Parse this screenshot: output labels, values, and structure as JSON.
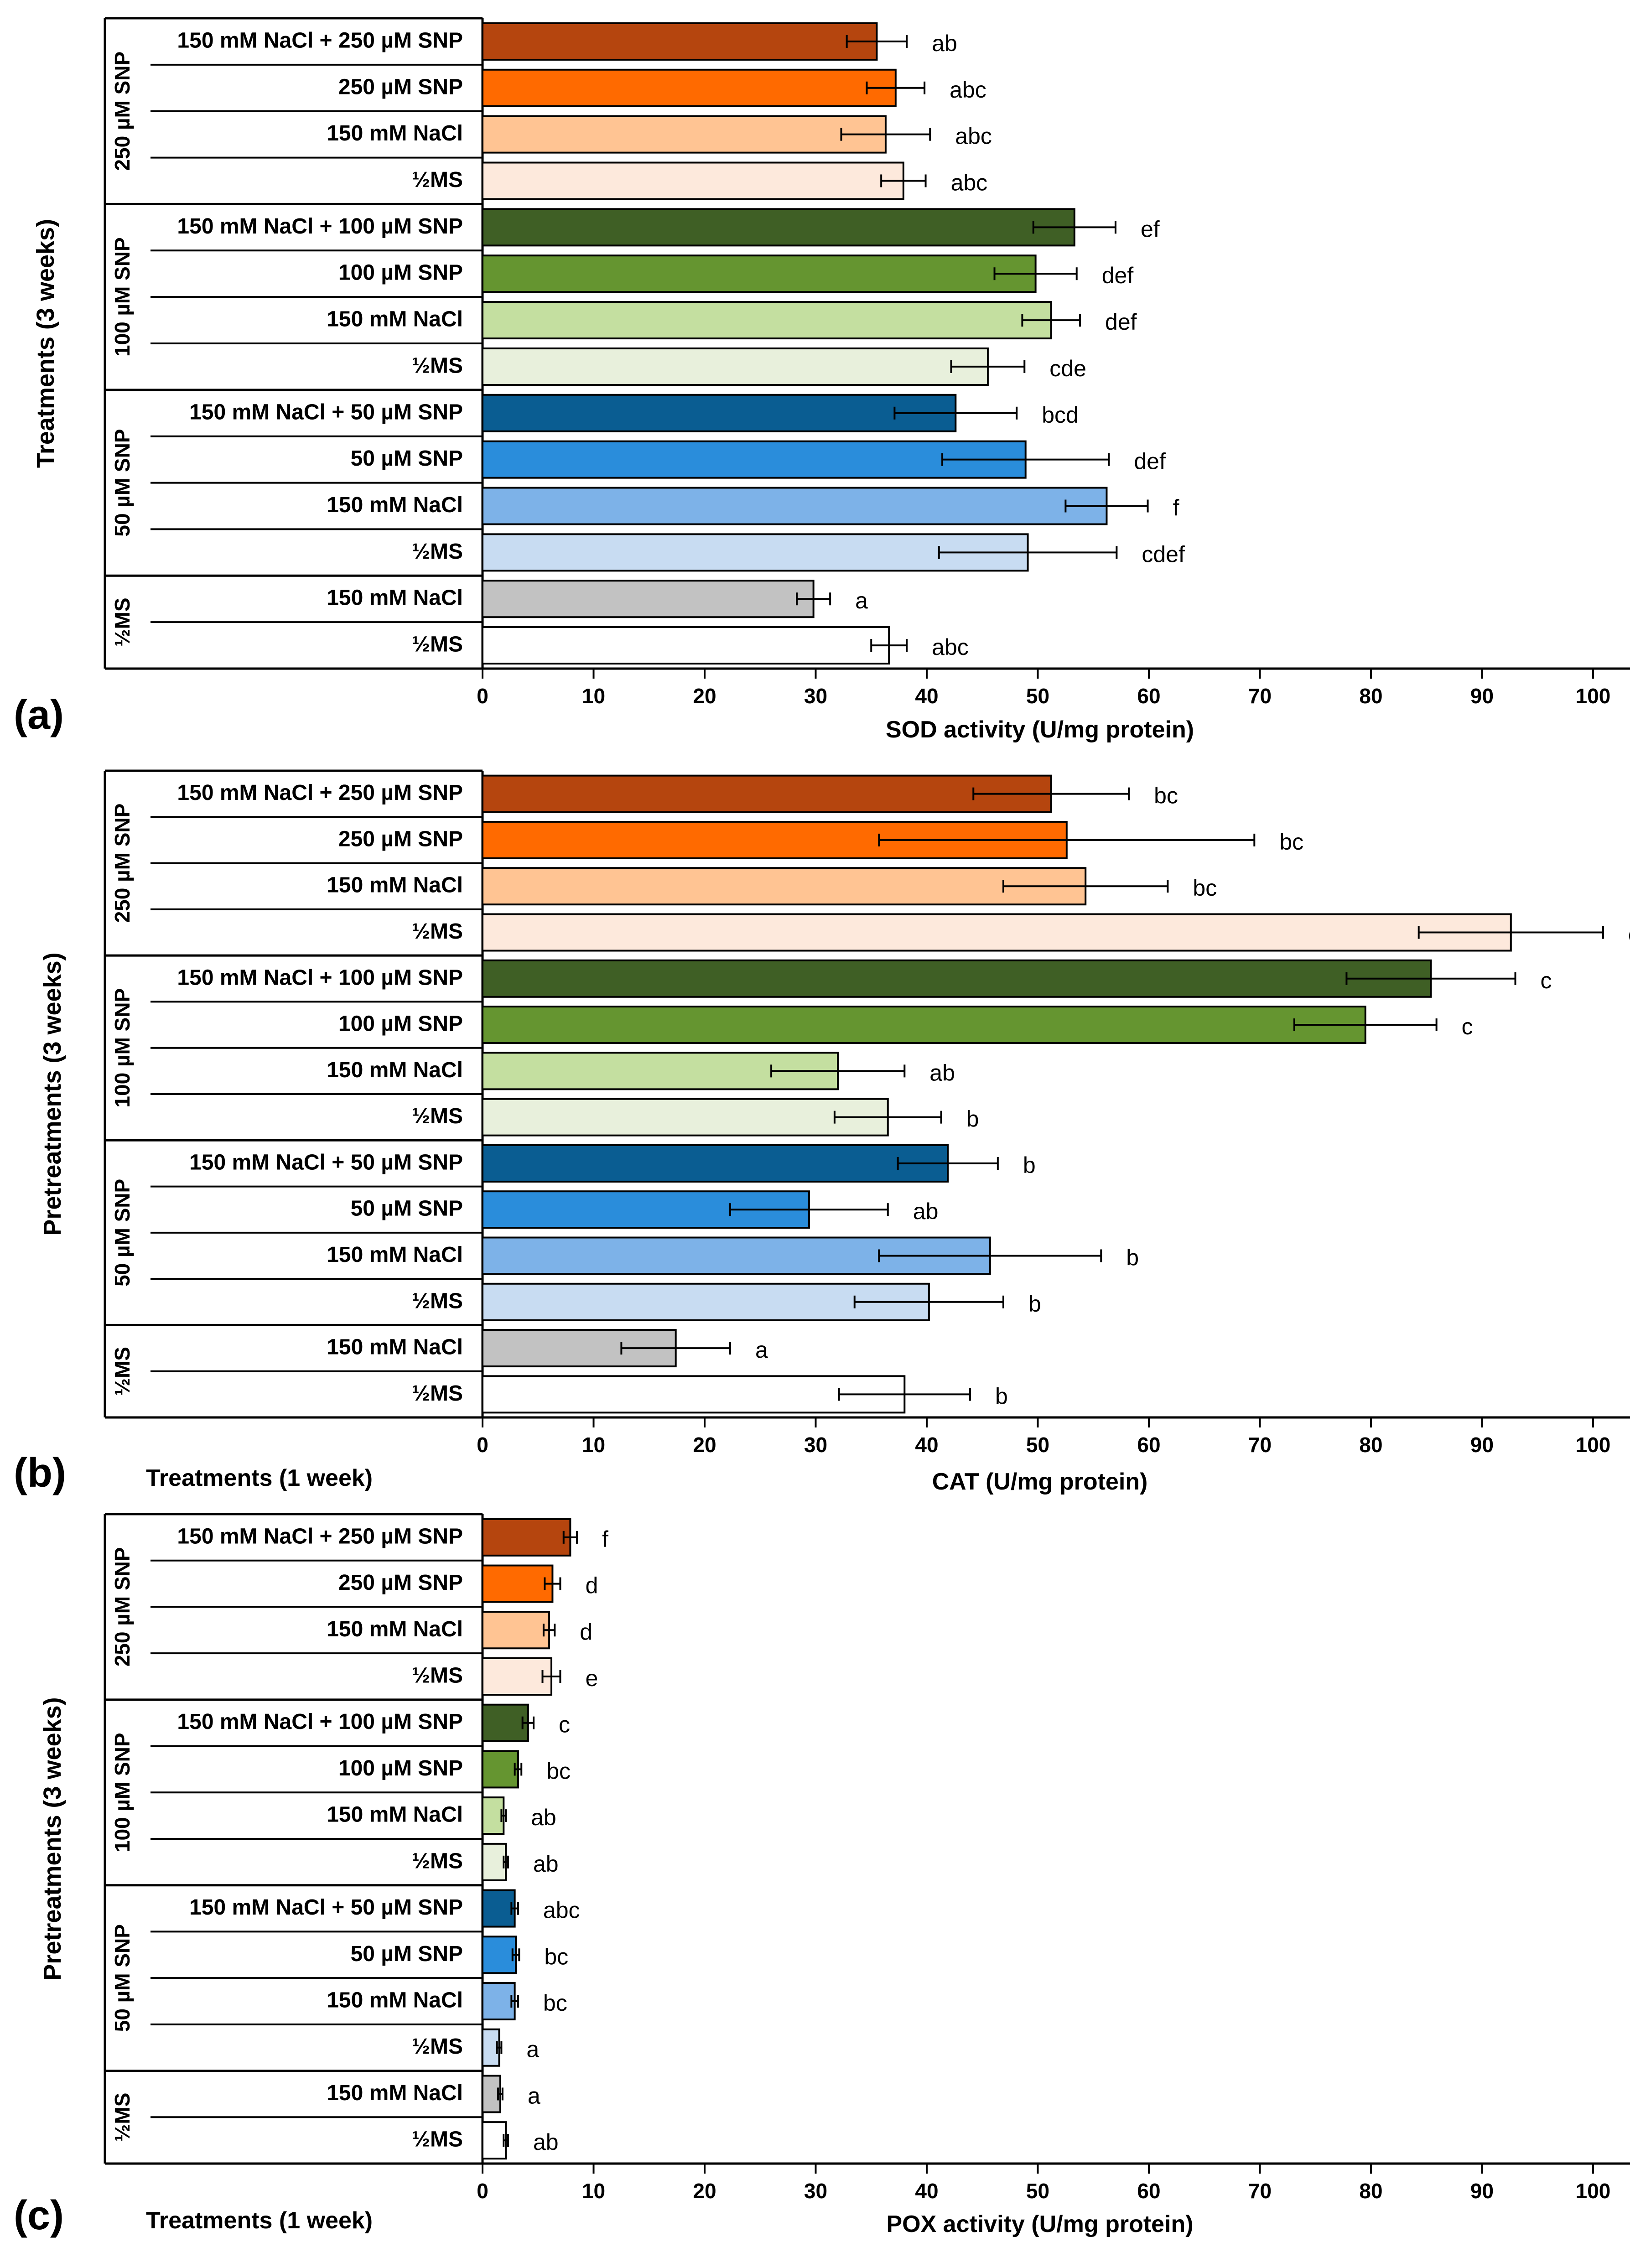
{
  "figure": {
    "group_labels": [
      "250 µM SNP",
      "100 µM SNP",
      "50 µM SNP",
      "½MS"
    ],
    "category_labels": [
      "150 mM NaCl + 250 µM SNP",
      "250 µM SNP",
      "150 mM NaCl",
      "½MS",
      "150 mM NaCl + 100 µM SNP",
      "100 µM SNP",
      "150 mM NaCl",
      "½MS",
      "150 mM NaCl + 50 µM SNP",
      "50 µM SNP",
      "150 mM NaCl",
      "½MS",
      "150 mM NaCl",
      "½MS"
    ],
    "colors": [
      "#b5450e",
      "#ff6a00",
      "#ffc493",
      "#fde9dc",
      "#3f5f25",
      "#659530",
      "#c4dfa0",
      "#e8f0dc",
      "#0a5d92",
      "#2a8ddb",
      "#7db2e8",
      "#c8dcf2",
      "#c2c2c2",
      "#ffffff"
    ]
  },
  "chart_data": [
    {
      "type": "bar",
      "panel_label": "(a)",
      "title": "",
      "xlabel": "SOD activity (U/mg protein)",
      "ylabel": "Treatments (3 weeks)",
      "bottom_label": "",
      "xlim": [
        0,
        120
      ],
      "xticks": [
        "0",
        "10",
        "20",
        "30",
        "40",
        "50",
        "60",
        "70",
        "80",
        "90",
        "100",
        "110",
        "120"
      ],
      "values": [
        35.5,
        37.2,
        36.3,
        37.9,
        53.3,
        49.8,
        51.2,
        45.5,
        42.6,
        48.9,
        56.2,
        49.1,
        29.8,
        36.6
      ],
      "errors": [
        2.7,
        2.6,
        4.0,
        2.0,
        3.7,
        3.7,
        2.6,
        3.3,
        5.5,
        7.5,
        3.7,
        8.0,
        1.5,
        1.6
      ],
      "letters": [
        "ab",
        "abc",
        "abc",
        "abc",
        "ef",
        "def",
        "def",
        "cde",
        "bcd",
        "def",
        "f",
        "cdef",
        "a",
        "abc"
      ]
    },
    {
      "type": "bar",
      "panel_label": "(b)",
      "title": "",
      "xlabel": "CAT (U/mg protein)",
      "ylabel": "Pretreatments (3 weeks)",
      "bottom_label": "Treatments (1 week)",
      "xlim": [
        0,
        120
      ],
      "xticks": [
        "0",
        "10",
        "20",
        "30",
        "40",
        "50",
        "60",
        "70",
        "80",
        "90",
        "100",
        "110",
        "120"
      ],
      "values": [
        51.2,
        52.6,
        54.3,
        92.6,
        85.4,
        79.5,
        32.0,
        36.5,
        41.9,
        29.4,
        45.7,
        40.2,
        17.4,
        38.0
      ],
      "errors": [
        7.0,
        16.9,
        7.4,
        8.3,
        7.6,
        6.4,
        6.0,
        4.8,
        4.5,
        7.1,
        10.0,
        6.7,
        4.9,
        5.9
      ],
      "letters": [
        "bc",
        "bc",
        "bc",
        "c",
        "c",
        "c",
        "ab",
        "b",
        "b",
        "ab",
        "b",
        "b",
        "a",
        "b"
      ]
    },
    {
      "type": "bar",
      "panel_label": "(c)",
      "title": "",
      "xlabel": "POX activity (U/mg protein)",
      "ylabel": "Pretreatments (3 weeks)",
      "bottom_label": "Treatments (1 week)",
      "xlim": [
        0,
        120
      ],
      "xticks": [
        "0",
        "10",
        "20",
        "30",
        "40",
        "50",
        "60",
        "70",
        "80",
        "90",
        "100",
        "110",
        "120"
      ],
      "values": [
        7.9,
        6.3,
        6.0,
        6.2,
        4.1,
        3.2,
        1.9,
        2.1,
        2.9,
        3.0,
        2.9,
        1.5,
        1.6,
        2.1
      ],
      "errors": [
        0.6,
        0.7,
        0.5,
        0.8,
        0.5,
        0.3,
        0.2,
        0.2,
        0.3,
        0.3,
        0.3,
        0.2,
        0.2,
        0.2
      ],
      "letters": [
        "f",
        "d",
        "d",
        "e",
        "c",
        "bc",
        "ab",
        "ab",
        "abc",
        "bc",
        "bc",
        "a",
        "a",
        "ab"
      ]
    }
  ]
}
